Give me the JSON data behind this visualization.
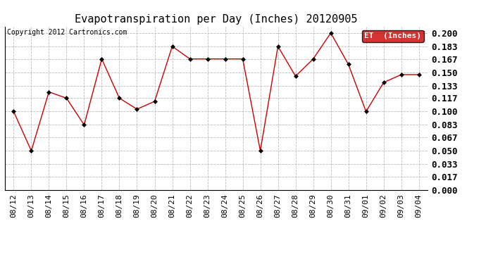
{
  "title": "Evapotranspiration per Day (Inches) 20120905",
  "copyright": "Copyright 2012 Cartronics.com",
  "legend_label": "ET  (Inches)",
  "legend_bg": "#cc0000",
  "legend_text_color": "#ffffff",
  "x_labels": [
    "08/12",
    "08/13",
    "08/14",
    "08/15",
    "08/16",
    "08/17",
    "08/18",
    "08/19",
    "08/20",
    "08/21",
    "08/22",
    "08/23",
    "08/24",
    "08/25",
    "08/26",
    "08/27",
    "08/28",
    "08/29",
    "08/30",
    "08/31",
    "09/01",
    "09/02",
    "09/03",
    "09/04"
  ],
  "y_values": [
    0.1,
    0.05,
    0.125,
    0.117,
    0.083,
    0.167,
    0.117,
    0.103,
    0.113,
    0.183,
    0.167,
    0.167,
    0.167,
    0.167,
    0.05,
    0.183,
    0.145,
    0.167,
    0.2,
    0.16,
    0.1,
    0.137,
    0.147,
    0.147
  ],
  "ylim": [
    0.0,
    0.2084
  ],
  "yticks": [
    0.0,
    0.017,
    0.033,
    0.05,
    0.067,
    0.083,
    0.1,
    0.117,
    0.133,
    0.15,
    0.167,
    0.183,
    0.2
  ],
  "line_color": "#cc0000",
  "marker": "D",
  "marker_size": 3,
  "marker_color": "#000000",
  "grid_color": "#bbbbbb",
  "bg_color": "#ffffff",
  "title_fontsize": 11,
  "tick_fontsize": 8,
  "copyright_fontsize": 7,
  "legend_fontsize": 8
}
